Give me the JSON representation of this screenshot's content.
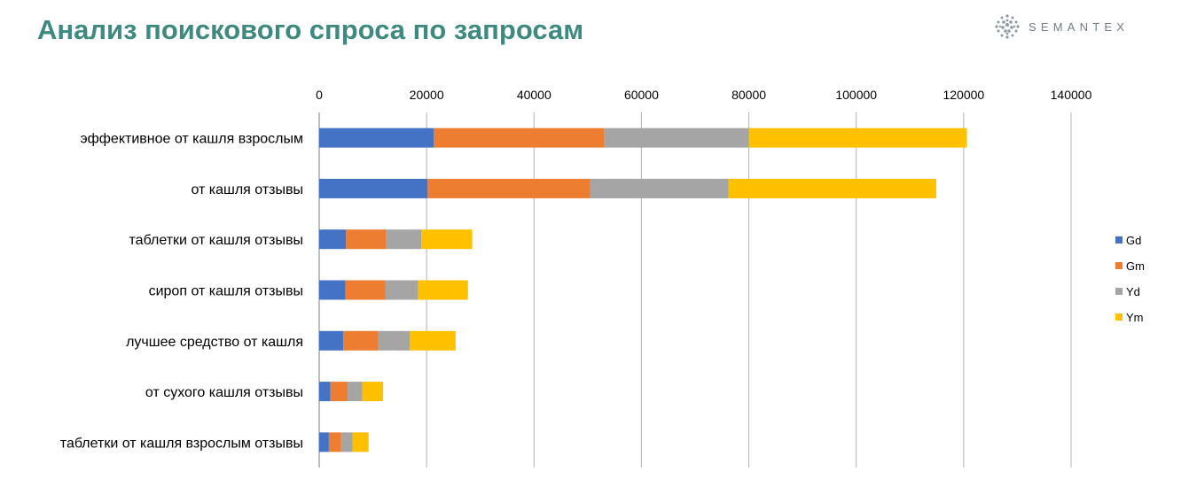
{
  "header": {
    "title": "Анализ поискового спроса по запросам",
    "logo_text": "SEMANTEX"
  },
  "chart_data": {
    "type": "bar",
    "orientation": "horizontal",
    "stacked": true,
    "title": "",
    "xlabel": "",
    "ylabel": "",
    "xlim": [
      0,
      140000
    ],
    "x_ticks": [
      0,
      20000,
      40000,
      60000,
      80000,
      100000,
      120000,
      140000
    ],
    "x_axis_position": "top",
    "grid": true,
    "legend_position": "right",
    "categories": [
      "эффективное от кашля взрослым",
      "от кашля отзывы",
      "таблетки от кашля отзывы",
      "сироп от кашля отзывы",
      "лучшее средство от кашля",
      "от сухого кашля отзывы",
      "таблетки от кашля взрослым отзывы"
    ],
    "series": [
      {
        "name": "Gd",
        "color": "#4472c4",
        "values": [
          21300,
          20200,
          5000,
          4900,
          4500,
          2100,
          1800
        ]
      },
      {
        "name": "Gm",
        "color": "#ed7d31",
        "values": [
          31700,
          30300,
          7500,
          7400,
          6500,
          3200,
          2300
        ]
      },
      {
        "name": "Yd",
        "color": "#a5a5a5",
        "values": [
          27000,
          25700,
          6500,
          6100,
          5900,
          2700,
          2100
        ]
      },
      {
        "name": "Ym",
        "color": "#ffc000",
        "values": [
          40600,
          38700,
          9500,
          9300,
          8500,
          3900,
          3000
        ]
      }
    ]
  }
}
